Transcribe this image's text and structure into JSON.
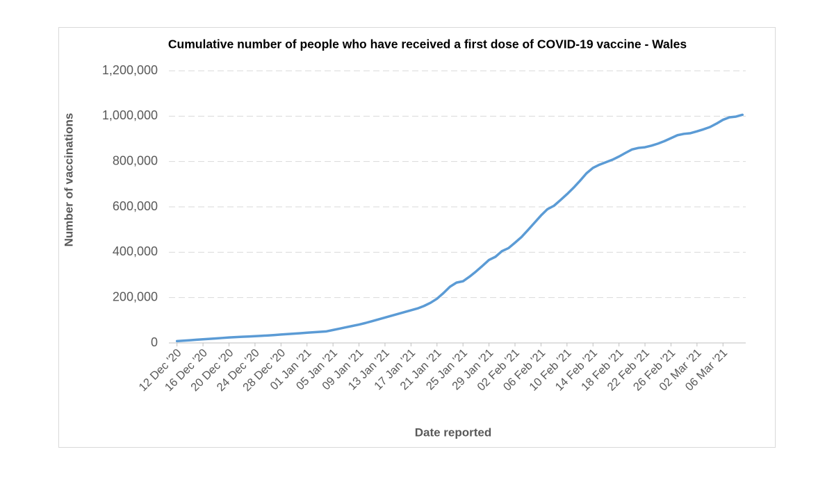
{
  "chart_data": {
    "type": "line",
    "title": "Cumulative number of people who have received a first dose of COVID-19 vaccine - Wales",
    "x_label": "Date reported",
    "y_label": "Number of vaccinations",
    "categories": [
      "12 Dec '20",
      null,
      null,
      null,
      "16 Dec '20",
      null,
      null,
      null,
      "20 Dec '20",
      null,
      null,
      null,
      "24 Dec '20",
      null,
      null,
      null,
      "28 Dec '20",
      null,
      null,
      null,
      "01 Jan '21",
      null,
      null,
      null,
      "05 Jan '21",
      null,
      null,
      null,
      "09 Jan '21",
      null,
      null,
      null,
      "13 Jan '21",
      null,
      null,
      null,
      "17 Jan '21",
      null,
      null,
      null,
      "21 Jan '21",
      null,
      null,
      null,
      "25 Jan '21",
      null,
      null,
      null,
      "29 Jan '21",
      null,
      null,
      null,
      "02 Feb '21",
      null,
      null,
      null,
      "06 Feb '21",
      null,
      null,
      null,
      "10 Feb '21",
      null,
      null,
      null,
      "14 Feb '21",
      null,
      null,
      null,
      "18 Feb '21",
      null,
      null,
      null,
      "22 Feb '21",
      null,
      null,
      null,
      "26 Feb '21",
      null,
      null,
      null,
      "02 Mar '21",
      null,
      null,
      null,
      "06 Mar '21",
      null,
      null,
      null
    ],
    "values": [
      8000,
      10000,
      12000,
      14000,
      16000,
      18000,
      20000,
      22000,
      24000,
      25500,
      27000,
      28500,
      30000,
      31500,
      33000,
      35000,
      37000,
      39000,
      41000,
      43000,
      45000,
      47000,
      49000,
      51000,
      57000,
      63000,
      69000,
      75000,
      81000,
      88000,
      96000,
      104000,
      112000,
      120000,
      128000,
      136000,
      144000,
      152000,
      163000,
      177000,
      195000,
      220000,
      248000,
      266000,
      272000,
      292000,
      315000,
      340000,
      366000,
      380000,
      405000,
      418000,
      442000,
      467000,
      498000,
      530000,
      562000,
      590000,
      605000,
      630000,
      656000,
      684000,
      715000,
      748000,
      772000,
      786000,
      797000,
      808000,
      822000,
      838000,
      853000,
      860000,
      863000,
      870000,
      879000,
      890000,
      903000,
      916000,
      922000,
      925000,
      933000,
      942000,
      952000,
      967000,
      984000,
      995000,
      998000,
      1006000
    ],
    "color": "#5b9bd5",
    "ylim": [
      0,
      1200000
    ],
    "yticks": [
      0,
      {
        "value": 200000,
        "label": "200,000"
      },
      {
        "value": 400000,
        "label": "400,000"
      },
      {
        "value": 600000,
        "label": "600,000"
      },
      {
        "value": 800000,
        "label": "800,000"
      },
      {
        "value": 1000000,
        "label": "1,000,000"
      },
      {
        "value": 1200000,
        "label": "1,200,000"
      }
    ],
    "grid": true
  }
}
